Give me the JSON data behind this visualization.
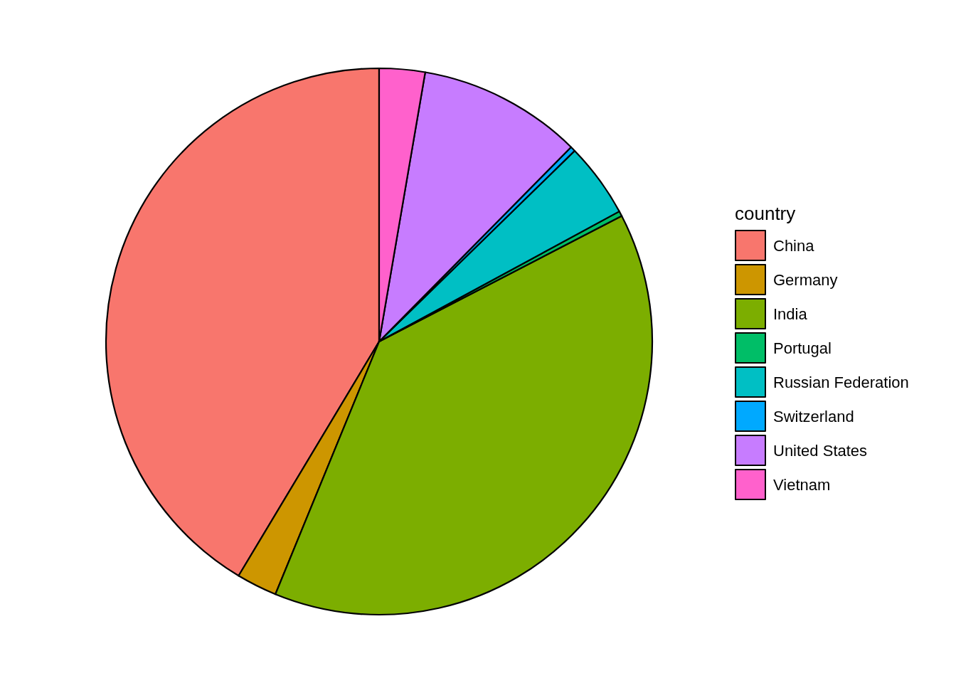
{
  "chart_data": {
    "type": "pie",
    "legend_title": "country",
    "legend": "right",
    "categories": [
      "China",
      "Germany",
      "India",
      "Portugal",
      "Russian Federation",
      "Switzerland",
      "United States",
      "Vietnam"
    ],
    "values": [
      41.4,
      2.4,
      38.8,
      0.3,
      4.4,
      0.3,
      9.7,
      2.7
    ],
    "colors": [
      "#f8766d",
      "#cd9600",
      "#7cae00",
      "#00be67",
      "#00bfc4",
      "#00a9ff",
      "#c77cff",
      "#ff61cc"
    ]
  }
}
